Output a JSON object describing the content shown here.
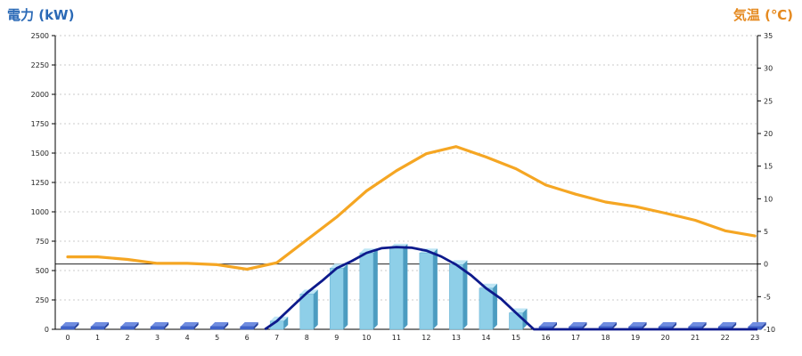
{
  "chart_data": {
    "type": "bar",
    "left_axis": {
      "label": "電力 (kW)",
      "range": [
        0,
        2500
      ],
      "ticks": [
        0,
        250,
        500,
        750,
        1000,
        1250,
        1500,
        1750,
        2000,
        2250,
        2500
      ]
    },
    "right_axis": {
      "label": "気温 (℃)",
      "range": [
        -10,
        35
      ],
      "ticks": [
        -10,
        -5,
        0,
        5,
        10,
        15,
        20,
        25,
        30,
        35
      ]
    },
    "categories": [
      "0",
      "1",
      "2",
      "3",
      "4",
      "5",
      "6",
      "7",
      "8",
      "9",
      "10",
      "11",
      "12",
      "13",
      "14",
      "15",
      "16",
      "17",
      "18",
      "19",
      "20",
      "21",
      "22",
      "23"
    ],
    "bars": [
      0,
      0,
      0,
      0,
      0,
      0,
      0,
      70,
      300,
      520,
      650,
      690,
      650,
      550,
      350,
      140,
      0,
      0,
      0,
      0,
      0,
      0,
      0,
      0
    ],
    "bar_color": "#8ecfe8",
    "zero_bar_color": "#4466cc",
    "power_curve": [
      {
        "x": 6.6,
        "y": 0
      },
      {
        "x": 7,
        "y": 70
      },
      {
        "x": 7.5,
        "y": 190
      },
      {
        "x": 8,
        "y": 310
      },
      {
        "x": 8.5,
        "y": 410
      },
      {
        "x": 9,
        "y": 520
      },
      {
        "x": 9.5,
        "y": 580
      },
      {
        "x": 10,
        "y": 650
      },
      {
        "x": 10.5,
        "y": 690
      },
      {
        "x": 11,
        "y": 700
      },
      {
        "x": 11.5,
        "y": 695
      },
      {
        "x": 12,
        "y": 670
      },
      {
        "x": 12.5,
        "y": 620
      },
      {
        "x": 13,
        "y": 550
      },
      {
        "x": 13.5,
        "y": 460
      },
      {
        "x": 14,
        "y": 350
      },
      {
        "x": 14.5,
        "y": 260
      },
      {
        "x": 15,
        "y": 140
      },
      {
        "x": 15.6,
        "y": 0
      },
      {
        "x": 23.5,
        "y": 0
      }
    ],
    "power_curve_color": "#0d1a8c",
    "temperature": [
      1.1,
      1.1,
      0.7,
      0.1,
      0.1,
      -0.1,
      -0.8,
      0.2,
      3.7,
      7.2,
      11.2,
      14.3,
      16.9,
      18.0,
      16.4,
      14.6,
      12.1,
      10.7,
      9.5,
      8.8,
      7.8,
      6.7,
      5.1,
      4.3
    ],
    "temperature_color": "#f5a623",
    "grid": "horizontal dashed",
    "reference_line_temperature": 0
  }
}
